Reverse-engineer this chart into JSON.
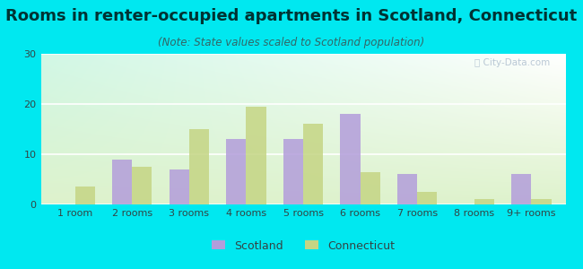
{
  "title": "Rooms in renter-occupied apartments in Scotland, Connecticut",
  "subtitle": "(Note: State values scaled to Scotland population)",
  "categories": [
    "1 room",
    "2 rooms",
    "3 rooms",
    "4 rooms",
    "5 rooms",
    "6 rooms",
    "7 rooms",
    "8 rooms",
    "9+ rooms"
  ],
  "scotland_values": [
    0,
    9,
    7,
    13,
    13,
    18,
    6,
    0,
    6
  ],
  "connecticut_values": [
    3.5,
    7.5,
    15,
    19.5,
    16,
    6.5,
    2.5,
    1,
    1
  ],
  "scotland_color": "#b39ddb",
  "connecticut_color": "#c5d584",
  "background_outer": "#00e8f0",
  "ylim": [
    0,
    30
  ],
  "yticks": [
    0,
    10,
    20,
    30
  ],
  "bar_width": 0.35,
  "figsize": [
    6.5,
    3.0
  ],
  "dpi": 100,
  "title_fontsize": 13,
  "subtitle_fontsize": 8.5,
  "axis_label_fontsize": 8,
  "legend_fontsize": 9,
  "title_color": "#003333",
  "subtitle_color": "#336666"
}
